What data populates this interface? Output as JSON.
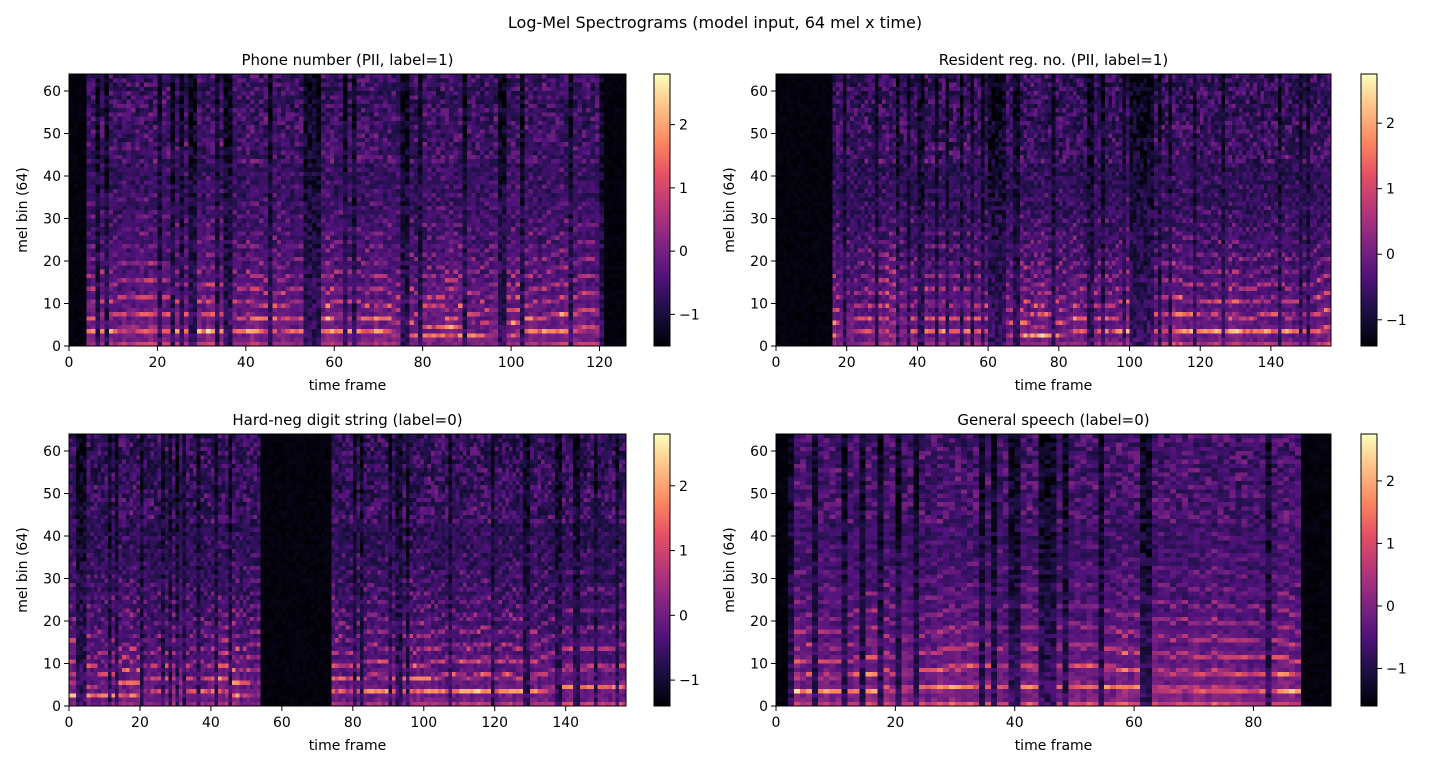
{
  "figure": {
    "suptitle": "Log-Mel Spectrograms (model input, 64 mel x time)"
  },
  "chart_data": [
    {
      "type": "heatmap",
      "title": "Phone number  (PII, label=1)",
      "xlabel": "time frame",
      "ylabel": "mel bin (64)",
      "xlim": [
        0,
        126
      ],
      "ylim": [
        0,
        64
      ],
      "xticks": [
        0,
        20,
        40,
        60,
        80,
        100,
        120
      ],
      "yticks": [
        0,
        10,
        20,
        30,
        40,
        50,
        60
      ],
      "colorbar": {
        "min": -1.5,
        "max": 2.8,
        "ticks": [
          -1,
          0,
          1,
          2
        ]
      },
      "colormap": "magma",
      "silence": [
        [
          0,
          4
        ],
        [
          121,
          126
        ]
      ],
      "gaps": [
        [
          28.5,
          29.5
        ],
        [
          35.5,
          36.5
        ],
        [
          54.5,
          55.5
        ],
        [
          97,
          99
        ]
      ],
      "seed": 11
    },
    {
      "type": "heatmap",
      "title": "Resident reg. no.  (PII, label=1)",
      "xlabel": "time frame",
      "ylabel": "mel bin (64)",
      "xlim": [
        0,
        157
      ],
      "ylim": [
        0,
        64
      ],
      "xticks": [
        0,
        20,
        40,
        60,
        80,
        100,
        120,
        140
      ],
      "yticks": [
        0,
        10,
        20,
        30,
        40,
        50,
        60
      ],
      "colorbar": {
        "min": -1.4,
        "max": 2.75,
        "ticks": [
          -1,
          0,
          1,
          2
        ]
      },
      "colormap": "magma",
      "silence": [
        [
          0,
          16
        ]
      ],
      "gaps": [
        [
          40.5,
          42
        ],
        [
          60,
          65
        ],
        [
          100.5,
          107
        ]
      ],
      "seed": 23
    },
    {
      "type": "heatmap",
      "title": "Hard-neg digit string  (label=0)",
      "xlabel": "time frame",
      "ylabel": "mel bin (64)",
      "xlim": [
        0,
        157
      ],
      "ylim": [
        0,
        64
      ],
      "xticks": [
        0,
        20,
        40,
        60,
        80,
        100,
        120,
        140
      ],
      "yticks": [
        0,
        10,
        20,
        30,
        40,
        50,
        60
      ],
      "colorbar": {
        "min": -1.4,
        "max": 2.8,
        "ticks": [
          -1,
          0,
          1,
          2
        ]
      },
      "colormap": "magma",
      "silence": [
        [
          54,
          74
        ]
      ],
      "gaps": [
        [
          28,
          29
        ],
        [
          36.5,
          37.5
        ],
        [
          90.5,
          91.5
        ],
        [
          119,
          120
        ]
      ],
      "seed": 37
    },
    {
      "type": "heatmap",
      "title": "General speech  (label=0)",
      "xlabel": "time frame",
      "ylabel": "mel bin (64)",
      "xlim": [
        0,
        93
      ],
      "ylim": [
        0,
        64
      ],
      "xticks": [
        0,
        20,
        40,
        60,
        80
      ],
      "yticks": [
        0,
        10,
        20,
        30,
        40,
        50,
        60
      ],
      "colorbar": {
        "min": -1.6,
        "max": 2.75,
        "ticks": [
          -1,
          0,
          1,
          2
        ]
      },
      "colormap": "magma",
      "silence": [
        [
          0,
          2
        ],
        [
          88,
          93
        ]
      ],
      "gaps": [
        [
          6.5,
          7.5
        ],
        [
          39.5,
          40.5
        ],
        [
          61.5,
          62.5
        ]
      ],
      "seed": 53
    }
  ]
}
